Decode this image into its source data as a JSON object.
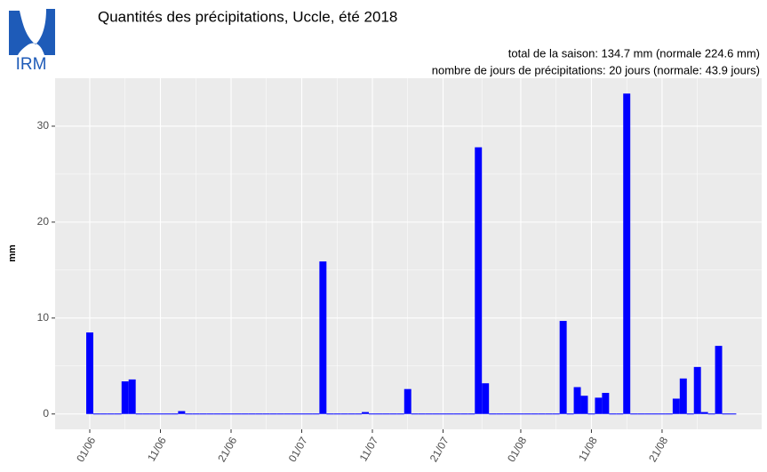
{
  "chart_data": {
    "type": "bar",
    "title": "Quantités des précipitations, Uccle, été 2018",
    "subtitle": [
      "total de la saison: 134.7 mm (normale 224.6 mm)",
      "nombre de jours de précipitations: 20 jours (normale: 43.9 jours)"
    ],
    "logo_text": "IRM",
    "ylabel": "mm",
    "categories": [
      "01/06",
      null,
      null,
      null,
      null,
      null,
      null,
      null,
      null,
      null,
      "11/06",
      null,
      null,
      null,
      null,
      null,
      null,
      null,
      null,
      null,
      "21/06",
      null,
      null,
      null,
      null,
      null,
      null,
      null,
      null,
      null,
      "01/07",
      null,
      null,
      null,
      null,
      null,
      null,
      null,
      null,
      null,
      "11/07",
      null,
      null,
      null,
      null,
      null,
      null,
      null,
      null,
      null,
      "21/07",
      null,
      null,
      null,
      null,
      null,
      null,
      null,
      null,
      null,
      null,
      "01/08",
      null,
      null,
      null,
      null,
      null,
      null,
      null,
      null,
      null,
      "11/08",
      null,
      null,
      null,
      null,
      null,
      null,
      null,
      null,
      null,
      "21/08",
      null,
      null,
      null,
      null,
      null,
      null,
      null,
      null,
      null,
      null
    ],
    "values": [
      8.5,
      0,
      0,
      0,
      0,
      3.4,
      3.6,
      0,
      0,
      0,
      0,
      0,
      0,
      0.3,
      0,
      0,
      0,
      0,
      0,
      0,
      0,
      0,
      0,
      0,
      0,
      0,
      0,
      0,
      0,
      0,
      0,
      0,
      0,
      15.9,
      0,
      0,
      0,
      0,
      0,
      0.2,
      0,
      0,
      0,
      0,
      0,
      2.6,
      0,
      0,
      0,
      0,
      0,
      0,
      0,
      0,
      0,
      27.8,
      3.2,
      0,
      0,
      0,
      0,
      0,
      0,
      0,
      0,
      0,
      0,
      9.7,
      0,
      2.8,
      1.9,
      0,
      1.7,
      2.2,
      0,
      0,
      33.4,
      0,
      0,
      0,
      0,
      0,
      0,
      1.6,
      3.7,
      0,
      4.9,
      0.2,
      0,
      7.1,
      0,
      0
    ],
    "color": "#0000ff",
    "ylim": [
      -1.6,
      35
    ],
    "yticks": [
      0,
      10,
      20,
      30
    ],
    "grid": true
  }
}
